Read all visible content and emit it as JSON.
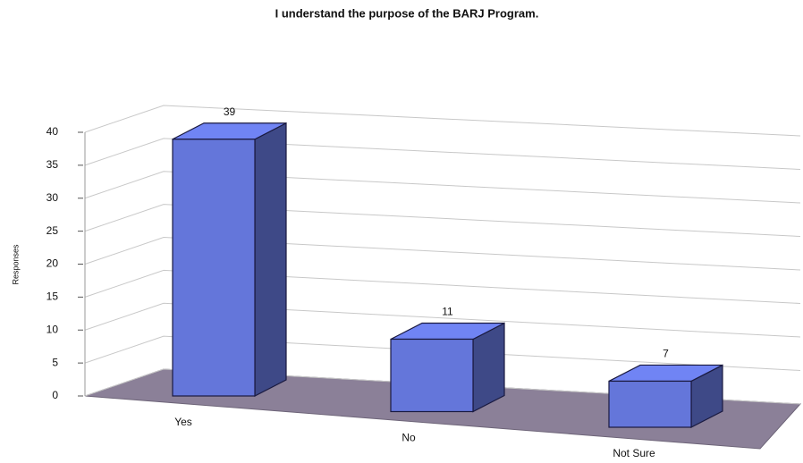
{
  "chart_data": {
    "type": "bar3d",
    "title": "I understand the purpose of the BARJ Program.",
    "y_label": "Responses",
    "categories": [
      "Yes",
      "No",
      "Not Sure"
    ],
    "values": [
      39,
      11,
      7
    ],
    "color": "#6476da",
    "ylim": [
      0,
      40
    ],
    "yticks": [
      0,
      5,
      10,
      15,
      20,
      25,
      30,
      35,
      40
    ],
    "grid": true
  }
}
